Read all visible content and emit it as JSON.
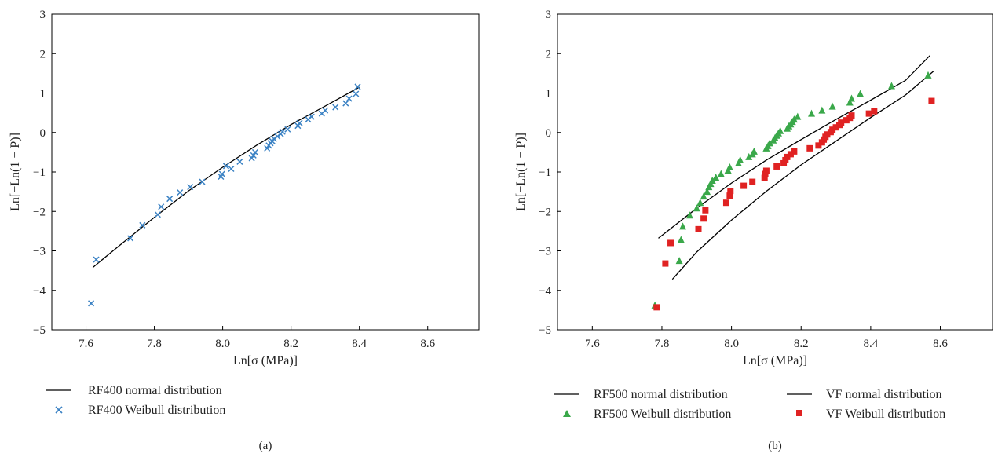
{
  "chart_data": [
    {
      "type": "scatter",
      "panel_label": "(a)",
      "xlabel": "Ln[σ (MPa)]",
      "ylabel": "Ln[−Ln(1 − P)]",
      "xlim": [
        7.5,
        8.75
      ],
      "ylim": [
        -5,
        3
      ],
      "xticks": [
        "7.6",
        "7.8",
        "8.0",
        "8.2",
        "8.4",
        "8.6"
      ],
      "xtick_values": [
        7.6,
        7.8,
        8.0,
        8.2,
        8.4,
        8.6
      ],
      "yticks": [
        "−5",
        "−4",
        "−3",
        "−2",
        "−1",
        "0",
        "1",
        "2",
        "3"
      ],
      "ytick_values": [
        -5,
        -4,
        -3,
        -2,
        -1,
        0,
        1,
        2,
        3
      ],
      "grid": false,
      "legend_position": "below",
      "series": [
        {
          "name": "RF400 normal distribution",
          "kind": "line",
          "color": "#000000",
          "x": [
            7.62,
            7.7,
            7.8,
            7.9,
            8.0,
            8.1,
            8.2,
            8.3,
            8.4
          ],
          "y": [
            -3.42,
            -2.85,
            -2.15,
            -1.48,
            -0.88,
            -0.32,
            0.2,
            0.67,
            1.15
          ]
        },
        {
          "name": "RF400 Weibull distribution",
          "kind": "marker",
          "marker": "x",
          "color": "#3b82c4",
          "x": [
            7.615,
            7.63,
            7.73,
            7.765,
            7.81,
            7.82,
            7.845,
            7.875,
            7.905,
            7.94,
            7.995,
            7.998,
            8.01,
            8.025,
            8.05,
            8.085,
            8.09,
            8.095,
            8.13,
            8.135,
            8.14,
            8.145,
            8.15,
            8.16,
            8.17,
            8.175,
            8.19,
            8.22,
            8.225,
            8.25,
            8.26,
            8.29,
            8.3,
            8.33,
            8.36,
            8.37,
            8.39,
            8.395
          ],
          "y": [
            -4.33,
            -3.22,
            -2.68,
            -2.35,
            -2.08,
            -1.88,
            -1.68,
            -1.52,
            -1.38,
            -1.25,
            -1.12,
            -1.05,
            -0.85,
            -0.92,
            -0.74,
            -0.65,
            -0.58,
            -0.5,
            -0.4,
            -0.33,
            -0.27,
            -0.22,
            -0.16,
            -0.1,
            -0.04,
            0.02,
            0.08,
            0.17,
            0.24,
            0.33,
            0.4,
            0.48,
            0.56,
            0.64,
            0.74,
            0.86,
            0.98,
            1.16
          ]
        }
      ]
    },
    {
      "type": "scatter",
      "panel_label": "(b)",
      "xlabel": "Ln[σ (MPa)]",
      "ylabel": "Ln[−Ln(1 − P)]",
      "xlim": [
        7.5,
        8.75
      ],
      "ylim": [
        -5,
        3
      ],
      "xticks": [
        "7.6",
        "7.8",
        "8.0",
        "8.2",
        "8.4",
        "8.6"
      ],
      "xtick_values": [
        7.6,
        7.8,
        8.0,
        8.2,
        8.4,
        8.6
      ],
      "yticks": [
        "−5",
        "−4",
        "−3",
        "−2",
        "−1",
        "0",
        "1",
        "2",
        "3"
      ],
      "ytick_values": [
        -5,
        -4,
        -3,
        -2,
        -1,
        0,
        1,
        2,
        3
      ],
      "grid": false,
      "legend_position": "below",
      "series": [
        {
          "name": "RF500 normal distribution",
          "kind": "line",
          "color": "#000000",
          "x": [
            7.79,
            7.9,
            8.0,
            8.1,
            8.2,
            8.3,
            8.4,
            8.5,
            8.57
          ],
          "y": [
            -2.68,
            -1.92,
            -1.28,
            -0.7,
            -0.18,
            0.33,
            0.82,
            1.32,
            1.95
          ]
        },
        {
          "name": "VF normal distribution",
          "kind": "line",
          "color": "#000000",
          "x": [
            7.83,
            7.9,
            8.0,
            8.1,
            8.2,
            8.3,
            8.4,
            8.5,
            8.58
          ],
          "y": [
            -3.72,
            -3.03,
            -2.22,
            -1.49,
            -0.82,
            -0.22,
            0.38,
            0.95,
            1.55
          ]
        },
        {
          "name": "RF500 Weibull distribution",
          "kind": "marker",
          "marker": "triangle",
          "color": "#3aa84a",
          "x": [
            7.78,
            7.85,
            7.855,
            7.86,
            7.88,
            7.9,
            7.91,
            7.92,
            7.93,
            7.935,
            7.94,
            7.945,
            7.955,
            7.97,
            7.99,
            7.995,
            8.02,
            8.025,
            8.05,
            8.06,
            8.065,
            8.1,
            8.105,
            8.11,
            8.12,
            8.125,
            8.13,
            8.135,
            8.14,
            8.16,
            8.165,
            8.17,
            8.175,
            8.18,
            8.19,
            8.23,
            8.26,
            8.29,
            8.34,
            8.345,
            8.37,
            8.46,
            8.565
          ],
          "y": [
            -4.38,
            -3.25,
            -2.72,
            -2.38,
            -2.1,
            -1.92,
            -1.78,
            -1.62,
            -1.5,
            -1.38,
            -1.3,
            -1.22,
            -1.14,
            -1.05,
            -0.96,
            -0.88,
            -0.78,
            -0.7,
            -0.62,
            -0.55,
            -0.48,
            -0.4,
            -0.34,
            -0.27,
            -0.2,
            -0.14,
            -0.08,
            -0.02,
            0.04,
            0.1,
            0.16,
            0.21,
            0.27,
            0.33,
            0.4,
            0.48,
            0.56,
            0.66,
            0.76,
            0.86,
            0.98,
            1.18,
            1.45
          ]
        },
        {
          "name": "VF Weibull distribution",
          "kind": "marker",
          "marker": "square",
          "color": "#e02222",
          "x": [
            7.785,
            7.81,
            7.825,
            7.905,
            7.92,
            7.925,
            7.985,
            7.995,
            7.997,
            8.035,
            8.06,
            8.095,
            8.097,
            8.1,
            8.13,
            8.15,
            8.155,
            8.16,
            8.17,
            8.18,
            8.225,
            8.25,
            8.26,
            8.265,
            8.27,
            8.275,
            8.285,
            8.29,
            8.3,
            8.31,
            8.315,
            8.33,
            8.34,
            8.345,
            8.395,
            8.41,
            8.575
          ],
          "y": [
            -4.43,
            -3.32,
            -2.8,
            -2.45,
            -2.18,
            -1.97,
            -1.78,
            -1.6,
            -1.48,
            -1.35,
            -1.25,
            -1.15,
            -1.05,
            -0.97,
            -0.86,
            -0.78,
            -0.7,
            -0.62,
            -0.55,
            -0.48,
            -0.4,
            -0.33,
            -0.25,
            -0.18,
            -0.11,
            -0.05,
            0.01,
            0.07,
            0.13,
            0.19,
            0.25,
            0.31,
            0.37,
            0.43,
            0.48,
            0.54,
            0.8
          ]
        }
      ]
    }
  ]
}
